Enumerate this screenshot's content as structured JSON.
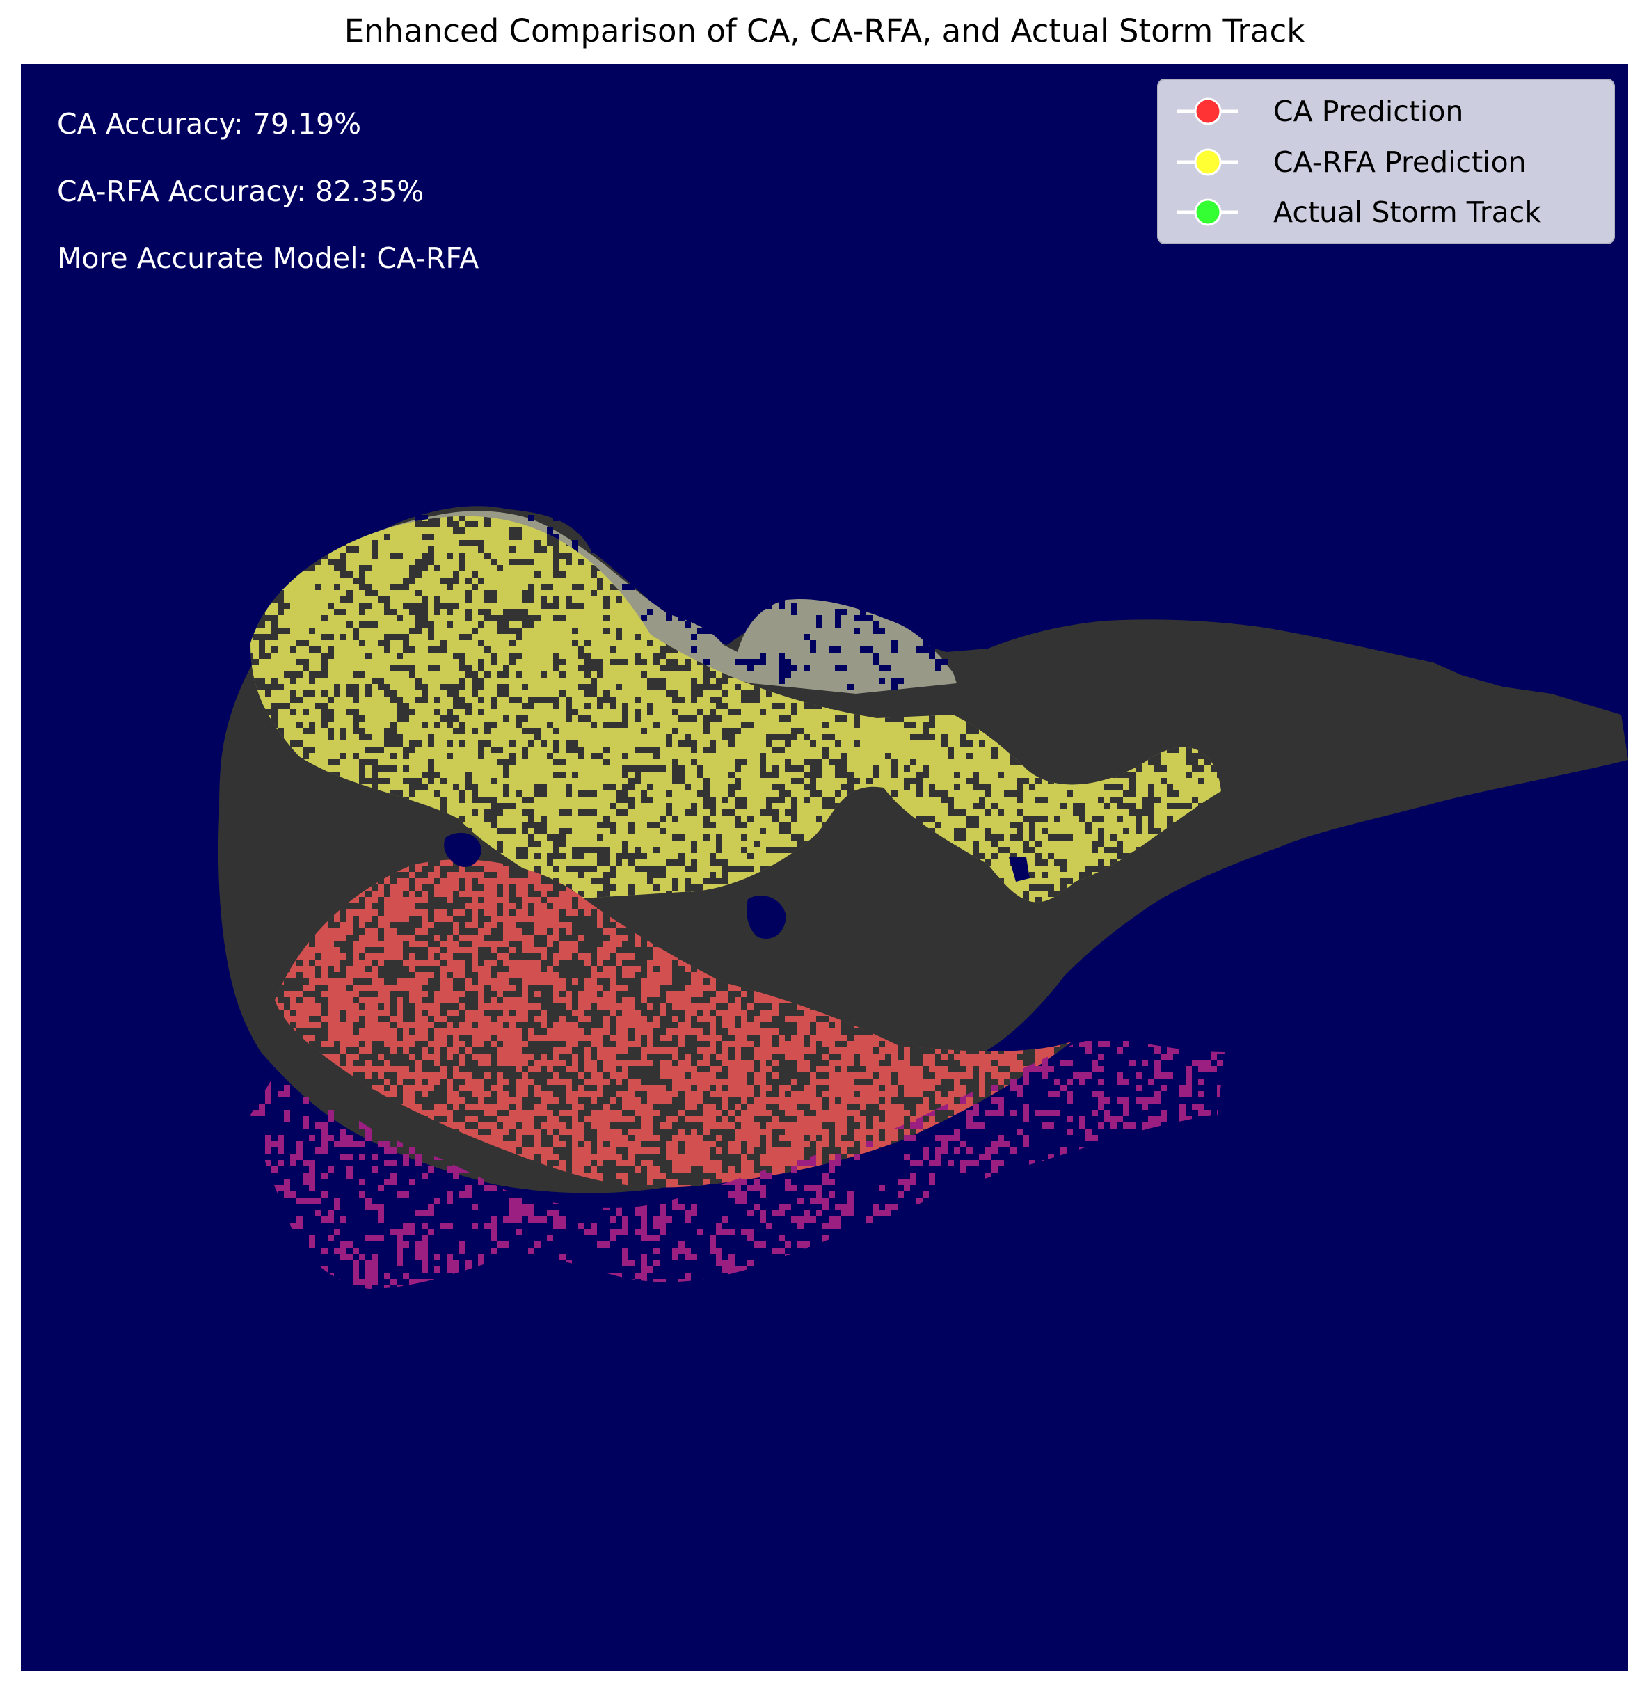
{
  "chart_data": {
    "type": "heatmap",
    "title": "Enhanced Comparison of CA, CA-RFA, and Actual Storm Track",
    "xlabel": "",
    "ylabel": "",
    "axes_visible": false,
    "grid": false,
    "legend_position": "top-right",
    "colors": {
      "background": "#00005f",
      "region_gray": "#333333",
      "ca_region": "#d25050",
      "carfa_region": "#cccc55",
      "overlap_light": "#999988",
      "track_magenta": "#9a1f80",
      "legend_ca": "#ff3333",
      "legend_carfa": "#ffff33",
      "legend_actual": "#33ff33",
      "annotation_text": "#ffffff"
    },
    "annotations": [
      "CA Accuracy: 79.19%",
      "CA-RFA Accuracy: 82.35%",
      "More Accurate Model: CA-RFA"
    ],
    "metrics": {
      "ca_accuracy_percent": 79.19,
      "carfa_accuracy_percent": 82.35,
      "more_accurate_model": "CA-RFA"
    },
    "legend": [
      {
        "label": "CA Prediction",
        "color": "#ff3333"
      },
      {
        "label": "CA-RFA Prediction",
        "color": "#ffff33"
      },
      {
        "label": "Actual Storm Track",
        "color": "#33ff33"
      }
    ]
  }
}
